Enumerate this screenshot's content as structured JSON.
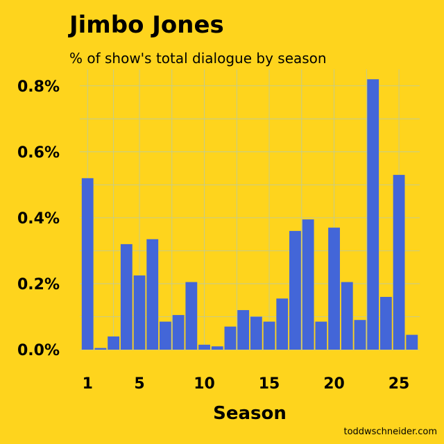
{
  "title": "Jimbo Jones",
  "subtitle": "% of show's total dialogue by season",
  "credit": "toddwschneider.com",
  "colors": {
    "background": "#FED41D",
    "bar": "#4366D8",
    "grid": "#B8C9A6"
  },
  "chart_data": {
    "type": "bar",
    "title": "Jimbo Jones",
    "subtitle": "% of show's total dialogue by season",
    "xlabel": "Season",
    "ylabel": "",
    "categories": [
      1,
      2,
      3,
      4,
      5,
      6,
      7,
      8,
      9,
      10,
      11,
      12,
      13,
      14,
      15,
      16,
      17,
      18,
      19,
      20,
      21,
      22,
      23,
      24,
      25,
      26
    ],
    "values": [
      0.52,
      0.005,
      0.04,
      0.32,
      0.225,
      0.335,
      0.085,
      0.105,
      0.205,
      0.015,
      0.01,
      0.07,
      0.12,
      0.1,
      0.085,
      0.155,
      0.36,
      0.395,
      0.085,
      0.37,
      0.205,
      0.09,
      0.82,
      0.16,
      0.53,
      0.045
    ],
    "ylim": [
      0,
      0.85
    ],
    "yticks": [
      0.0,
      0.2,
      0.4,
      0.6,
      0.8
    ],
    "ytick_labels": [
      "0.0%",
      "0.2%",
      "0.4%",
      "0.6%",
      "0.8%"
    ],
    "xticks": [
      1,
      5,
      10,
      15,
      20,
      25
    ],
    "xtick_labels": [
      "1",
      "5",
      "10",
      "15",
      "20",
      "25"
    ],
    "grid": true
  }
}
